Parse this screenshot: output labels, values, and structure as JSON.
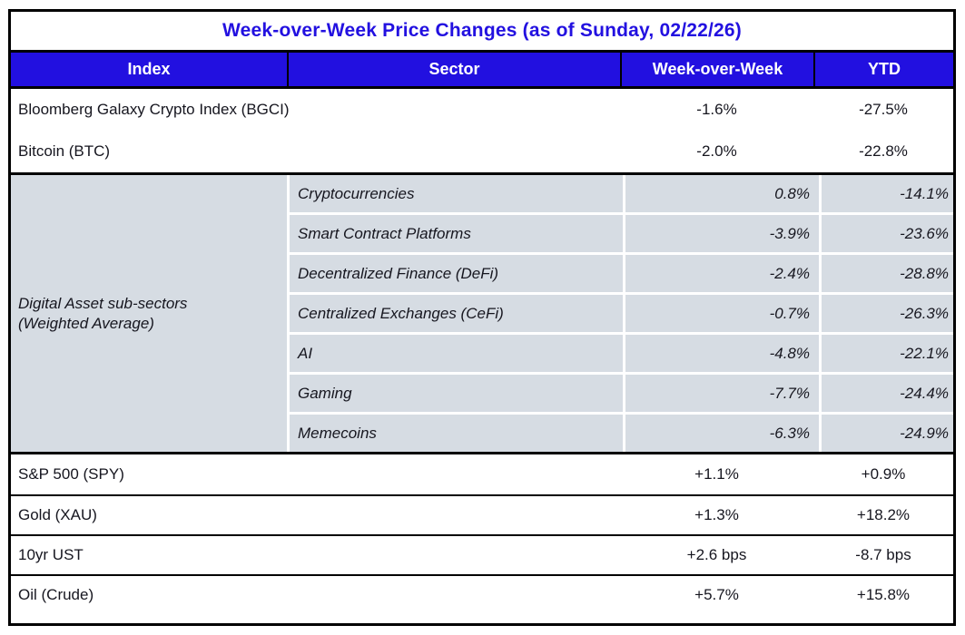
{
  "title": "Week-over-Week Price Changes (as of Sunday, 02/22/26)",
  "colors": {
    "header_blue": "#2210e0",
    "subsector_gray": "#d6dce3",
    "border_black": "#000000",
    "header_text_white": "#ffffff",
    "body_text": "#16161f"
  },
  "columns": {
    "index": "Index",
    "sector": "Sector",
    "wow": "Week-over-Week",
    "ytd": "YTD"
  },
  "top_rows": [
    {
      "index": "Bloomberg Galaxy Crypto Index (BGCI)",
      "wow": "-1.6%",
      "ytd": "-27.5%"
    },
    {
      "index": "Bitcoin (BTC)",
      "wow": "-2.0%",
      "ytd": "-22.8%"
    }
  ],
  "subsector_group": {
    "index_label_line1": "Digital Asset sub-sectors",
    "index_label_line2": "(Weighted Average)",
    "rows": [
      {
        "sector": "Cryptocurrencies",
        "wow": "0.8%",
        "ytd": "-14.1%"
      },
      {
        "sector": "Smart Contract Platforms",
        "wow": "-3.9%",
        "ytd": "-23.6%"
      },
      {
        "sector": "Decentralized Finance (DeFi)",
        "wow": "-2.4%",
        "ytd": "-28.8%"
      },
      {
        "sector": "Centralized Exchanges (CeFi)",
        "wow": "-0.7%",
        "ytd": "-26.3%"
      },
      {
        "sector": "AI",
        "wow": "-4.8%",
        "ytd": "-22.1%"
      },
      {
        "sector": "Gaming",
        "wow": "-7.7%",
        "ytd": "-24.4%"
      },
      {
        "sector": "Memecoins",
        "wow": "-6.3%",
        "ytd": "-24.9%"
      }
    ]
  },
  "bottom_rows": [
    {
      "index": "S&P 500 (SPY)",
      "wow": "+1.1%",
      "ytd": "+0.9%"
    },
    {
      "index": "Gold (XAU)",
      "wow": "+1.3%",
      "ytd": "+18.2%"
    },
    {
      "index": "10yr UST",
      "wow": "+2.6 bps",
      "ytd": "-8.7 bps"
    },
    {
      "index": "Oil (Crude)",
      "wow": "+5.7%",
      "ytd": "+15.8%"
    }
  ],
  "chart_data": {
    "type": "table",
    "title": "Week-over-Week Price Changes (as of Sunday, 02/22/26)",
    "columns": [
      "Index",
      "Sector",
      "Week-over-Week",
      "YTD"
    ],
    "rows": [
      [
        "Bloomberg Galaxy Crypto Index (BGCI)",
        "",
        "-1.6%",
        "-27.5%"
      ],
      [
        "Bitcoin (BTC)",
        "",
        "-2.0%",
        "-22.8%"
      ],
      [
        "Digital Asset sub-sectors (Weighted Average)",
        "Cryptocurrencies",
        "0.8%",
        "-14.1%"
      ],
      [
        "Digital Asset sub-sectors (Weighted Average)",
        "Smart Contract Platforms",
        "-3.9%",
        "-23.6%"
      ],
      [
        "Digital Asset sub-sectors (Weighted Average)",
        "Decentralized Finance (DeFi)",
        "-2.4%",
        "-28.8%"
      ],
      [
        "Digital Asset sub-sectors (Weighted Average)",
        "Centralized Exchanges (CeFi)",
        "-0.7%",
        "-26.3%"
      ],
      [
        "Digital Asset sub-sectors (Weighted Average)",
        "AI",
        "-4.8%",
        "-22.1%"
      ],
      [
        "Digital Asset sub-sectors (Weighted Average)",
        "Gaming",
        "-7.7%",
        "-24.4%"
      ],
      [
        "Digital Asset sub-sectors (Weighted Average)",
        "Memecoins",
        "-6.3%",
        "-24.9%"
      ],
      [
        "S&P 500 (SPY)",
        "",
        "+1.1%",
        "+0.9%"
      ],
      [
        "Gold (XAU)",
        "",
        "+1.3%",
        "+18.2%"
      ],
      [
        "10yr UST",
        "",
        "+2.6 bps",
        "-8.7 bps"
      ],
      [
        "Oil (Crude)",
        "",
        "+5.7%",
        "+15.8%"
      ]
    ]
  }
}
